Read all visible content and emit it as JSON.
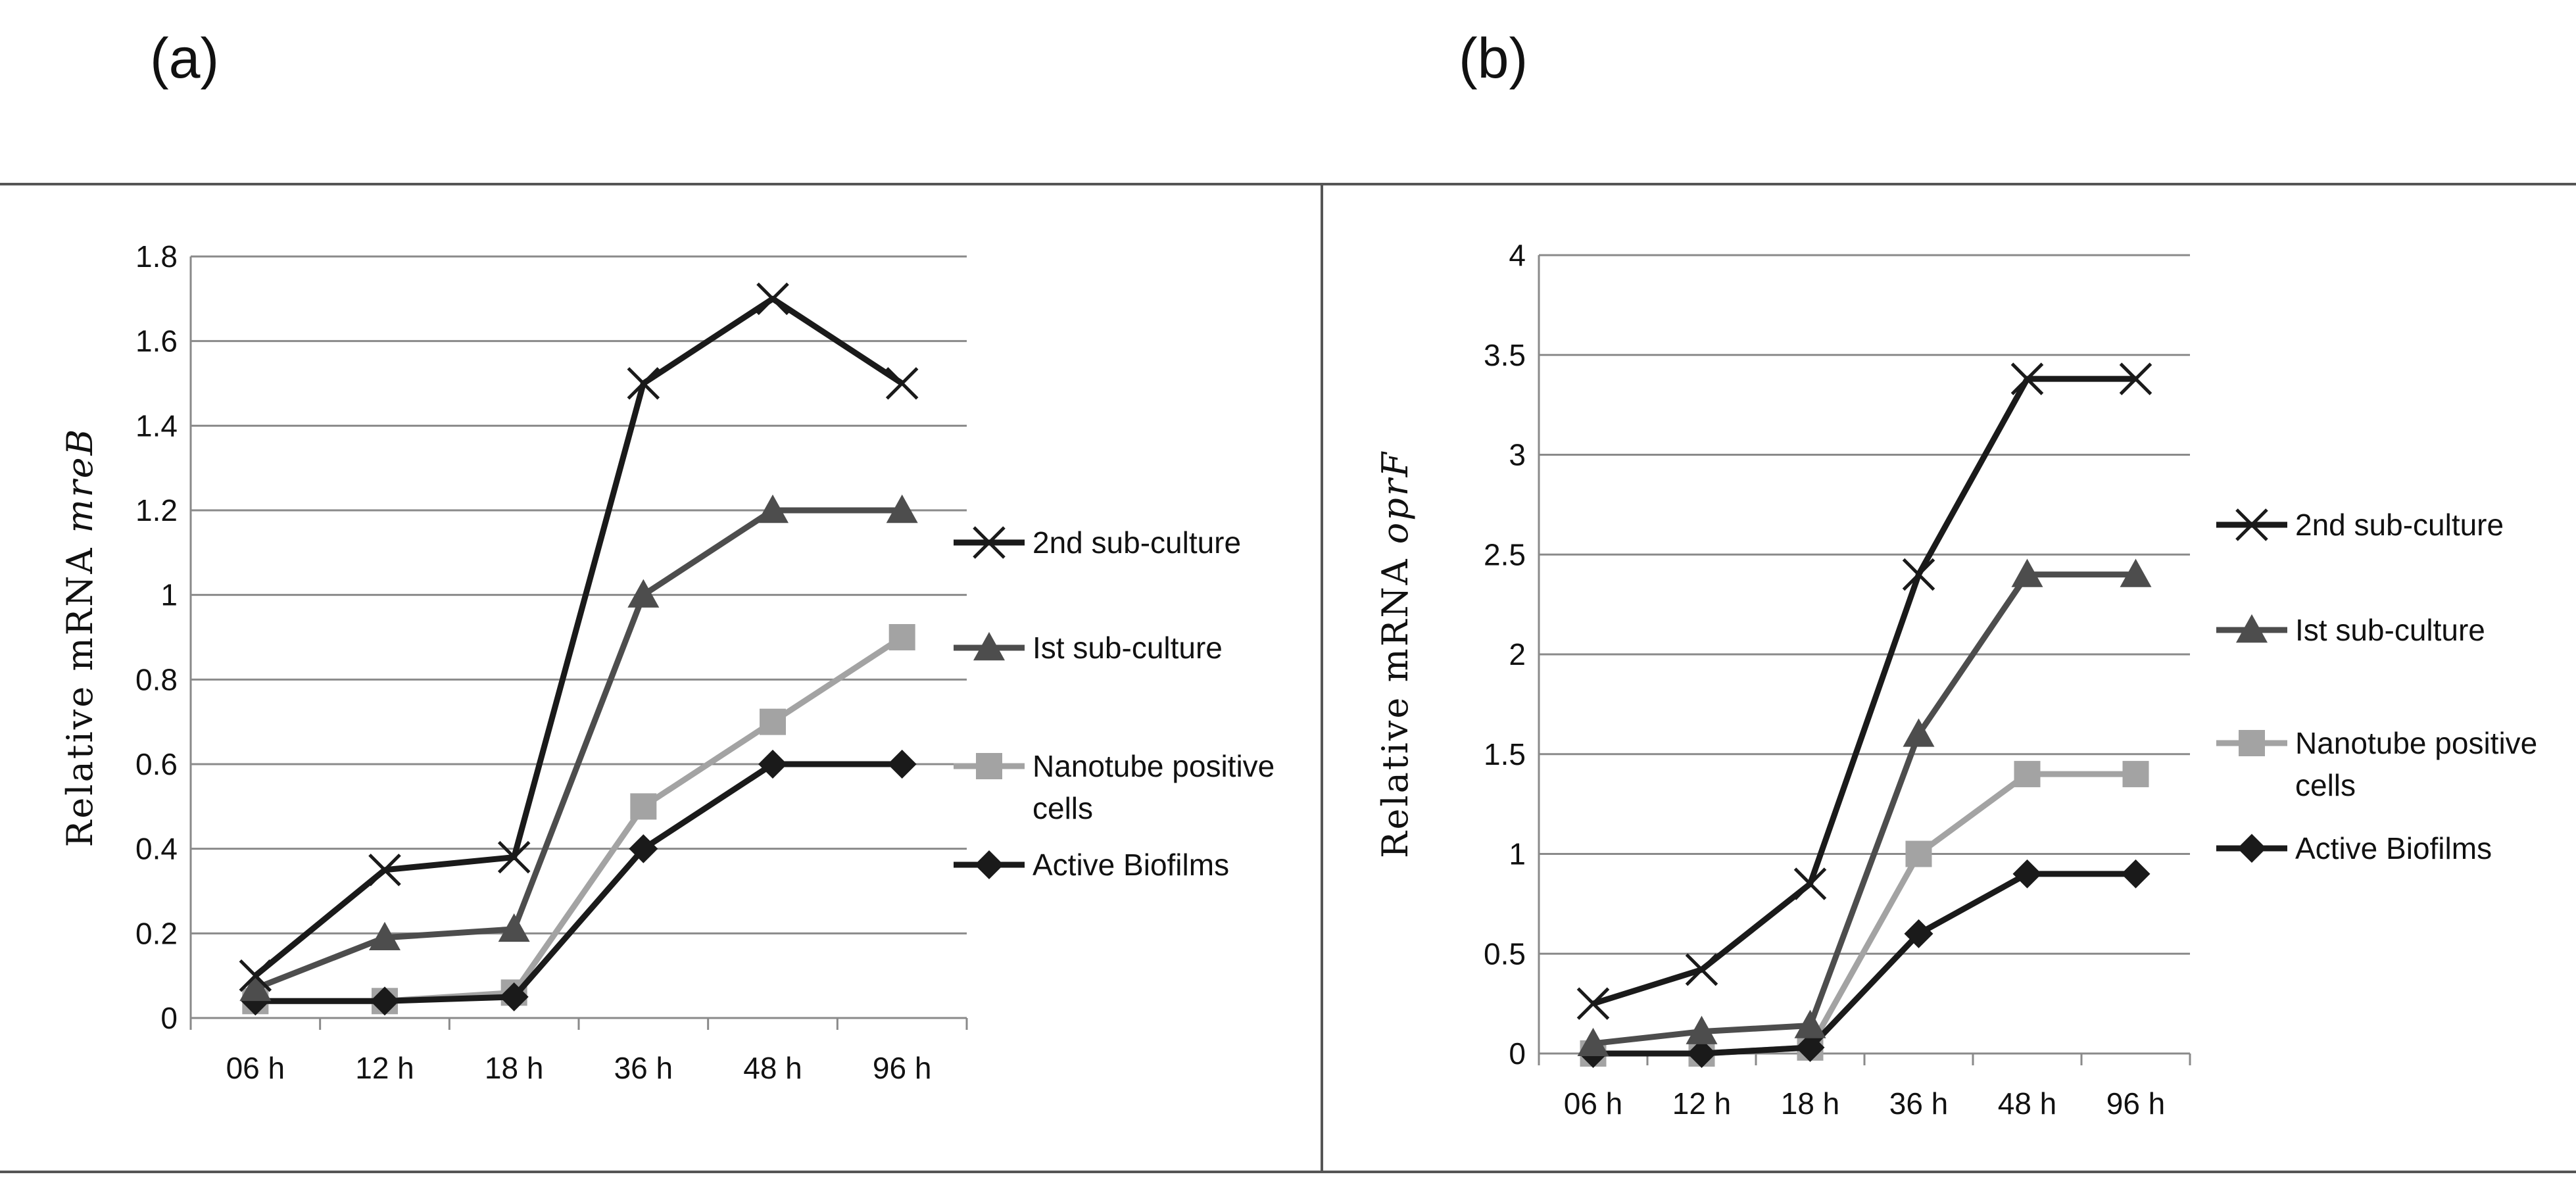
{
  "panels": [
    {
      "label": "(a)"
    },
    {
      "label": "(b)"
    }
  ],
  "legend": [
    {
      "name": "2nd sub-culture",
      "color": "#1a1a1a",
      "marker": "x-marker"
    },
    {
      "name": "Ist sub-culture",
      "color": "#4d4d4d",
      "marker": "triangle-marker"
    },
    {
      "name": "Nanotube positive cells",
      "color": "#a3a3a3",
      "marker": "square-marker"
    },
    {
      "name": "Active Biofilms",
      "color": "#1a1a1a",
      "marker": "diamond-marker"
    }
  ],
  "chart_data": [
    {
      "type": "line",
      "panel": "(a)",
      "title": "",
      "xlabel": "",
      "ylabel": "Relative mRNA mreB",
      "ylabel_prefix": "Relative mRNA",
      "ylabel_gene": "mreB",
      "categories": [
        "06 h",
        "12 h",
        "18 h",
        "36 h",
        "48 h",
        "96 h"
      ],
      "ylim": [
        0,
        1.8
      ],
      "yticks": [
        0,
        0.2,
        0.4,
        0.6,
        0.8,
        1,
        1.2,
        1.4,
        1.6,
        1.8
      ],
      "ytick_labels": [
        "0",
        "0.2",
        "0.4",
        "0.6",
        "0.8",
        "1",
        "1.2",
        "1.4",
        "1.6",
        "1.8"
      ],
      "grid": true,
      "legend_position": "right",
      "series": [
        {
          "name": "2nd sub-culture",
          "values": [
            0.1,
            0.35,
            0.38,
            1.5,
            1.7,
            1.5
          ]
        },
        {
          "name": "Ist sub-culture",
          "values": [
            0.07,
            0.19,
            0.21,
            1.0,
            1.2,
            1.2
          ]
        },
        {
          "name": "Nanotube positive cells",
          "values": [
            0.04,
            0.04,
            0.06,
            0.5,
            0.7,
            0.9
          ]
        },
        {
          "name": "Active Biofilms",
          "values": [
            0.04,
            0.04,
            0.05,
            0.4,
            0.6,
            0.6
          ]
        }
      ]
    },
    {
      "type": "line",
      "panel": "(b)",
      "title": "",
      "xlabel": "",
      "ylabel": "Relative mRNA oprF",
      "ylabel_prefix": "Relative mRNA",
      "ylabel_gene": "oprF",
      "categories": [
        "06 h",
        "12 h",
        "18 h",
        "36 h",
        "48 h",
        "96 h"
      ],
      "ylim": [
        0,
        4
      ],
      "yticks": [
        0,
        0.5,
        1,
        1.5,
        2,
        2.5,
        3,
        3.5,
        4
      ],
      "ytick_labels": [
        "0",
        "0.5",
        "1",
        "1.5",
        "2",
        "2.5",
        "3",
        "3.5",
        "4"
      ],
      "grid": true,
      "legend_position": "right",
      "series": [
        {
          "name": "2nd sub-culture",
          "values": [
            0.25,
            0.42,
            0.85,
            2.4,
            3.38,
            3.38
          ]
        },
        {
          "name": "Ist sub-culture",
          "values": [
            0.05,
            0.11,
            0.14,
            1.6,
            2.4,
            2.4
          ]
        },
        {
          "name": "Nanotube positive cells",
          "values": [
            0.0,
            0.0,
            0.03,
            1.0,
            1.4,
            1.4
          ]
        },
        {
          "name": "Active Biofilms",
          "values": [
            0.0,
            0.0,
            0.03,
            0.6,
            0.9,
            0.9
          ]
        }
      ]
    }
  ]
}
